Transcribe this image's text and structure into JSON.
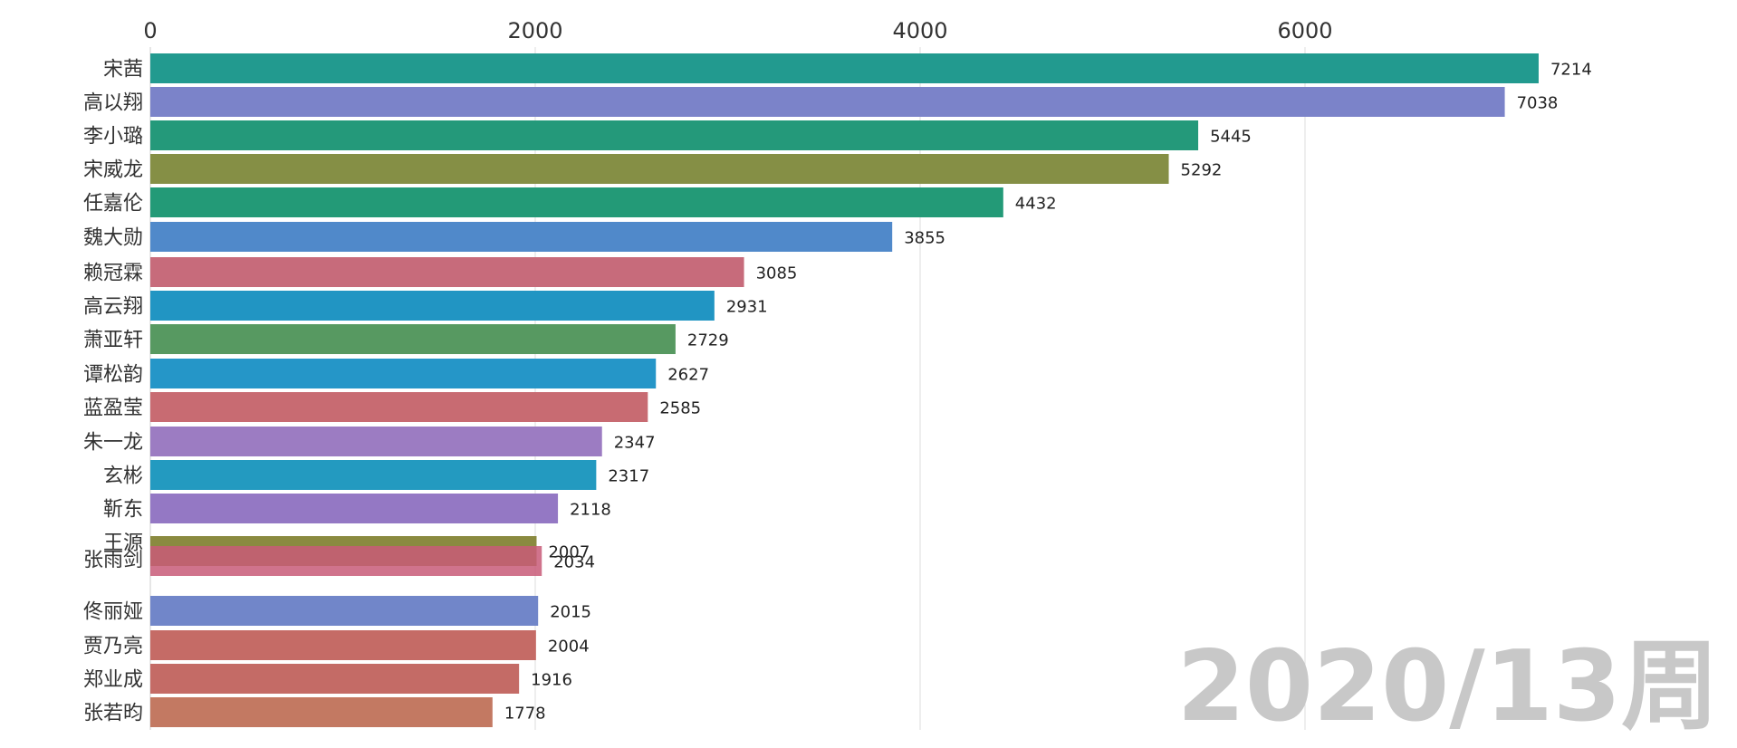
{
  "chart_data": {
    "type": "bar",
    "orientation": "horizontal",
    "title": "",
    "xlabel": "",
    "ylabel": "",
    "xlim": [
      0,
      7600
    ],
    "x_ticks": [
      "0",
      "2000",
      "4000",
      "6000"
    ],
    "grid": "vertical",
    "period_label": "2020/13周",
    "bars": [
      {
        "name": "宋茜",
        "value": 7214,
        "color": "#229a8f"
      },
      {
        "name": "高以翔",
        "value": 7038,
        "color": "#7b83c9"
      },
      {
        "name": "李小璐",
        "value": 5445,
        "color": "#24997a"
      },
      {
        "name": "宋威龙",
        "value": 5292,
        "color": "#858f45"
      },
      {
        "name": "任嘉伦",
        "value": 4432,
        "color": "#239a77"
      },
      {
        "name": "魏大勋",
        "value": 3855,
        "color": "#5089ca"
      },
      {
        "name": "赖冠霖",
        "value": 3085,
        "color": "#c76b7b"
      },
      {
        "name": "高云翔",
        "value": 2931,
        "color": "#2195c3"
      },
      {
        "name": "萧亚轩",
        "value": 2729,
        "color": "#579961"
      },
      {
        "name": "谭松韵",
        "value": 2627,
        "color": "#2596c8"
      },
      {
        "name": "蓝盈莹",
        "value": 2585,
        "color": "#c86b72"
      },
      {
        "name": "朱一龙",
        "value": 2347,
        "color": "#9c7cc2"
      },
      {
        "name": "玄彬",
        "value": 2317,
        "color": "#239ac0"
      },
      {
        "name": "靳东",
        "value": 2118,
        "color": "#9478c4"
      },
      {
        "name": "王源",
        "value": 2007,
        "color": "#8a8a40"
      },
      {
        "name": "张雨剑",
        "value": 2034,
        "color": "#c85a78"
      },
      {
        "name": "佟丽娅",
        "value": 2015,
        "color": "#7186c9"
      },
      {
        "name": "贾乃亮",
        "value": 2004,
        "color": "#c56b66"
      },
      {
        "name": "郑业成",
        "value": 1916,
        "color": "#c46b66"
      },
      {
        "name": "张若昀",
        "value": 1778,
        "color": "#c37962"
      }
    ]
  }
}
